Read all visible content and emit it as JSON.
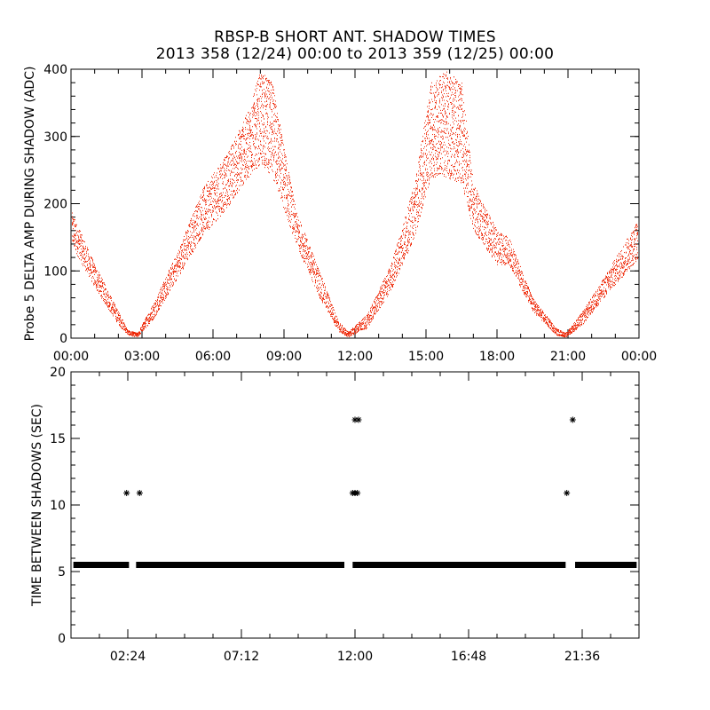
{
  "title_line1": "RBSP-B SHORT ANT. SHADOW TIMES",
  "title_line2": "2013 358 (12/24) 00:00 to 2013 359 (12/25) 00:00",
  "colors": {
    "top_points": "#ee2200",
    "bottom_points": "#000000",
    "axis": "#000000"
  },
  "chart_data": [
    {
      "type": "scatter",
      "title": "RBSP-B SHORT ANT. SHADOW TIMES",
      "ylabel": "Probe 5 DELTA AMP DURING SHADOW (ADC)",
      "xlabel": "",
      "xlim": [
        0,
        24
      ],
      "ylim": [
        0,
        400
      ],
      "x_ticks": [
        "00:00",
        "03:00",
        "06:00",
        "09:00",
        "12:00",
        "15:00",
        "18:00",
        "21:00",
        "00:00"
      ],
      "x_tick_values": [
        0,
        3,
        6,
        9,
        12,
        15,
        18,
        21,
        24
      ],
      "y_ticks": [
        0,
        100,
        200,
        300,
        400
      ],
      "series": [
        {
          "color": "#ee2200",
          "envelope_x_hours": [
            0,
            1,
            2,
            2.4,
            2.8,
            3.5,
            4.5,
            5.5,
            6.5,
            7.5,
            8,
            8.5,
            9.5,
            10.5,
            11.3,
            11.7,
            12.5,
            13.5,
            14.5,
            15.2,
            15.8,
            16.5,
            17,
            18,
            18.5,
            19.5,
            20.5,
            20.9,
            21.6,
            22.5,
            23.5,
            24
          ],
          "envelope_low": [
            140,
            75,
            20,
            5,
            2,
            30,
            90,
            150,
            190,
            240,
            260,
            240,
            140,
            60,
            10,
            2,
            15,
            70,
            150,
            240,
            240,
            230,
            160,
            110,
            110,
            40,
            5,
            2,
            20,
            60,
            100,
            120
          ],
          "envelope_high": [
            190,
            110,
            40,
            12,
            8,
            55,
            130,
            220,
            270,
            340,
            400,
            380,
            190,
            100,
            25,
            10,
            35,
            110,
            230,
            380,
            400,
            380,
            230,
            160,
            150,
            60,
            15,
            8,
            40,
            90,
            150,
            180
          ]
        }
      ]
    },
    {
      "type": "scatter",
      "ylabel": "TIME BETWEEN SHADOWS (SEC)",
      "xlabel": "",
      "xlim": [
        0,
        24
      ],
      "ylim": [
        0,
        20
      ],
      "x_ticks": [
        "02:24",
        "07:12",
        "12:00",
        "16:48",
        "21:36"
      ],
      "x_tick_values": [
        2.4,
        7.2,
        12.0,
        16.8,
        21.6
      ],
      "y_ticks": [
        0,
        5,
        10,
        15,
        20
      ],
      "series": [
        {
          "color": "#000000",
          "baseline_segments_hours": [
            [
              0.1,
              2.45
            ],
            [
              2.75,
              11.55
            ],
            [
              11.9,
              20.9
            ],
            [
              21.3,
              23.9
            ]
          ],
          "baseline_value": 5.5,
          "points": [
            {
              "x": 2.35,
              "y": 10.9
            },
            {
              "x": 2.9,
              "y": 10.9
            },
            {
              "x": 11.9,
              "y": 10.9
            },
            {
              "x": 12.0,
              "y": 10.9
            },
            {
              "x": 12.1,
              "y": 10.9
            },
            {
              "x": 12.0,
              "y": 16.4
            },
            {
              "x": 12.15,
              "y": 16.4
            },
            {
              "x": 20.95,
              "y": 10.9
            },
            {
              "x": 21.2,
              "y": 16.4
            }
          ]
        }
      ]
    }
  ]
}
